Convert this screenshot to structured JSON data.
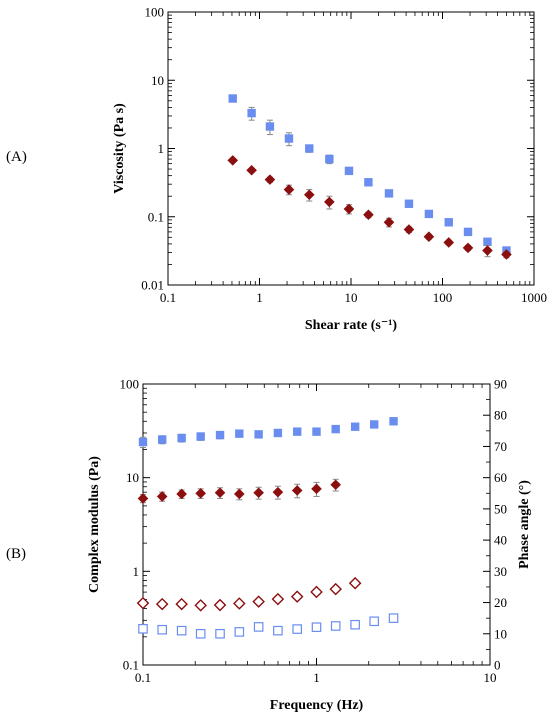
{
  "panels": {
    "a_label": "(A)",
    "b_label": "(B)"
  },
  "chart_data": [
    {
      "type": "scatter",
      "panel": "A",
      "xscale": "log",
      "yscale": "log",
      "xlim": [
        0.1,
        1000
      ],
      "ylim": [
        0.01,
        100
      ],
      "xlabel": "Shear rate (s⁻¹)",
      "ylabel": "Viscosity (Pa s)",
      "xticks": [
        0.1,
        1,
        10,
        100,
        1000
      ],
      "yticks": [
        0.01,
        0.1,
        1,
        10,
        100
      ],
      "xtick_labels": [
        "0.1",
        "1",
        "10",
        "100",
        "1000"
      ],
      "ytick_labels": [
        "0.01",
        "0.1",
        "1",
        "10",
        "100"
      ],
      "grid": false,
      "legend": "none",
      "series": [
        {
          "marker": "square-filled",
          "color": "#6a8ef0",
          "points": [
            {
              "x": 0.51,
              "y": 5.4,
              "err": 0.5
            },
            {
              "x": 0.82,
              "y": 3.3,
              "err": 0.7
            },
            {
              "x": 1.3,
              "y": 2.1,
              "err": 0.5
            },
            {
              "x": 2.1,
              "y": 1.4,
              "err": 0.3
            },
            {
              "x": 3.5,
              "y": 1.0,
              "err": 0.12
            },
            {
              "x": 5.8,
              "y": 0.7,
              "err": 0.1
            },
            {
              "x": 9.5,
              "y": 0.47,
              "err": 0.05
            },
            {
              "x": 15.5,
              "y": 0.32,
              "err": 0.02
            },
            {
              "x": 26,
              "y": 0.22,
              "err": 0.015
            },
            {
              "x": 43,
              "y": 0.155,
              "err": 0.01
            },
            {
              "x": 71,
              "y": 0.11,
              "err": 0.008
            },
            {
              "x": 117,
              "y": 0.083,
              "err": 0.005
            },
            {
              "x": 190,
              "y": 0.06,
              "err": 0.004
            },
            {
              "x": 310,
              "y": 0.043,
              "err": 0.003
            },
            {
              "x": 500,
              "y": 0.032,
              "err": 0.002
            }
          ]
        },
        {
          "marker": "diamond-filled",
          "color": "#8b0f0f",
          "points": [
            {
              "x": 0.51,
              "y": 0.67,
              "err": 0.04
            },
            {
              "x": 0.82,
              "y": 0.48,
              "err": 0.03
            },
            {
              "x": 1.3,
              "y": 0.35,
              "err": 0.03
            },
            {
              "x": 2.1,
              "y": 0.25,
              "err": 0.04
            },
            {
              "x": 3.5,
              "y": 0.21,
              "err": 0.04
            },
            {
              "x": 5.8,
              "y": 0.165,
              "err": 0.035
            },
            {
              "x": 9.5,
              "y": 0.13,
              "err": 0.02
            },
            {
              "x": 15.5,
              "y": 0.107,
              "err": 0.01
            },
            {
              "x": 26,
              "y": 0.083,
              "err": 0.012
            },
            {
              "x": 43,
              "y": 0.065,
              "err": 0.006
            },
            {
              "x": 71,
              "y": 0.051,
              "err": 0.004
            },
            {
              "x": 117,
              "y": 0.042,
              "err": 0.003
            },
            {
              "x": 190,
              "y": 0.035,
              "err": 0.003
            },
            {
              "x": 310,
              "y": 0.032,
              "err": 0.006
            },
            {
              "x": 500,
              "y": 0.028,
              "err": 0.003
            }
          ]
        }
      ]
    },
    {
      "type": "scatter",
      "panel": "B",
      "xscale": "log",
      "yscale": "log",
      "xlim": [
        0.1,
        10
      ],
      "ylim": [
        0.1,
        100
      ],
      "y2lim": [
        0,
        90
      ],
      "xlabel": "Frequency (Hz)",
      "ylabel": "Complex modulus (Pa)",
      "y2label": "Phase angle (°)",
      "xticks": [
        0.1,
        1,
        10
      ],
      "yticks": [
        0.1,
        1,
        10,
        100
      ],
      "y2ticks": [
        0,
        10,
        20,
        30,
        40,
        50,
        60,
        70,
        80,
        90
      ],
      "xtick_labels": [
        "0.1",
        "1",
        "10"
      ],
      "ytick_labels": [
        "0.1",
        "1",
        "10",
        "100"
      ],
      "y2tick_labels": [
        "0",
        "10",
        "20",
        "30",
        "40",
        "50",
        "60",
        "70",
        "80",
        "90"
      ],
      "grid": false,
      "legend": "none",
      "series": [
        {
          "marker": "square-filled",
          "color": "#6a8ef0",
          "axis": "left",
          "points": [
            {
              "x": 0.1,
              "y": 24,
              "err": 3
            },
            {
              "x": 0.129,
              "y": 25.5,
              "err": 2.5
            },
            {
              "x": 0.167,
              "y": 26.5,
              "err": 2.5
            },
            {
              "x": 0.215,
              "y": 27.5,
              "err": 2.5
            },
            {
              "x": 0.278,
              "y": 28.5,
              "err": 2.5
            },
            {
              "x": 0.359,
              "y": 29.5,
              "err": 2
            },
            {
              "x": 0.464,
              "y": 29,
              "err": 2
            },
            {
              "x": 0.599,
              "y": 30,
              "err": 2
            },
            {
              "x": 0.774,
              "y": 31,
              "err": 2
            },
            {
              "x": 1.0,
              "y": 31,
              "err": 2
            },
            {
              "x": 1.29,
              "y": 33,
              "err": 1.5
            },
            {
              "x": 1.67,
              "y": 35,
              "err": 1
            },
            {
              "x": 2.15,
              "y": 37,
              "err": 1
            },
            {
              "x": 2.78,
              "y": 40,
              "err": 1
            }
          ]
        },
        {
          "marker": "diamond-filled",
          "color": "#8b0f0f",
          "axis": "left",
          "points": [
            {
              "x": 0.1,
              "y": 6.0,
              "err": 0.6
            },
            {
              "x": 0.129,
              "y": 6.3,
              "err": 0.7
            },
            {
              "x": 0.167,
              "y": 6.7,
              "err": 0.7
            },
            {
              "x": 0.215,
              "y": 6.8,
              "err": 0.8
            },
            {
              "x": 0.278,
              "y": 6.9,
              "err": 0.9
            },
            {
              "x": 0.359,
              "y": 6.7,
              "err": 0.9
            },
            {
              "x": 0.464,
              "y": 6.9,
              "err": 1.0
            },
            {
              "x": 0.599,
              "y": 7.0,
              "err": 1.1
            },
            {
              "x": 0.774,
              "y": 7.3,
              "err": 1.2
            },
            {
              "x": 1.0,
              "y": 7.6,
              "err": 1.3
            },
            {
              "x": 1.29,
              "y": 8.4,
              "err": 1.2
            }
          ]
        },
        {
          "marker": "diamond-open",
          "color": "#8b0f0f",
          "axis": "right",
          "points": [
            {
              "x": 0.1,
              "y": 19.8,
              "err": 0.4
            },
            {
              "x": 0.129,
              "y": 19.5,
              "err": 0.4
            },
            {
              "x": 0.167,
              "y": 19.5,
              "err": 0.4
            },
            {
              "x": 0.215,
              "y": 19.1,
              "err": 0.4
            },
            {
              "x": 0.278,
              "y": 19.2,
              "err": 0.4
            },
            {
              "x": 0.359,
              "y": 19.7,
              "err": 0.4
            },
            {
              "x": 0.464,
              "y": 20.3,
              "err": 0.4
            },
            {
              "x": 0.599,
              "y": 21.1,
              "err": 0.4
            },
            {
              "x": 0.774,
              "y": 21.9,
              "err": 0.4
            },
            {
              "x": 1.0,
              "y": 23.4,
              "err": 0.5
            },
            {
              "x": 1.29,
              "y": 24.3,
              "err": 0.6
            },
            {
              "x": 1.67,
              "y": 26.2,
              "err": 0.4
            }
          ]
        },
        {
          "marker": "square-open",
          "color": "#6a8ef0",
          "axis": "right",
          "points": [
            {
              "x": 0.1,
              "y": 11.6,
              "err": 0.4
            },
            {
              "x": 0.129,
              "y": 11.3,
              "err": 0.4
            },
            {
              "x": 0.167,
              "y": 11.0,
              "err": 0.4
            },
            {
              "x": 0.215,
              "y": 10.0,
              "err": 0.4
            },
            {
              "x": 0.278,
              "y": 10.0,
              "err": 0.5
            },
            {
              "x": 0.359,
              "y": 10.6,
              "err": 0.4
            },
            {
              "x": 0.464,
              "y": 12.2,
              "err": 0.8
            },
            {
              "x": 0.599,
              "y": 11.0,
              "err": 0.4
            },
            {
              "x": 0.774,
              "y": 11.5,
              "err": 0.6
            },
            {
              "x": 1.0,
              "y": 12.1,
              "err": 0.7
            },
            {
              "x": 1.29,
              "y": 12.5,
              "err": 0.7
            },
            {
              "x": 1.67,
              "y": 12.9,
              "err": 0.7
            },
            {
              "x": 2.15,
              "y": 14.0,
              "err": 0.7
            },
            {
              "x": 2.78,
              "y": 15.0,
              "err": 0.8
            }
          ]
        }
      ]
    }
  ]
}
